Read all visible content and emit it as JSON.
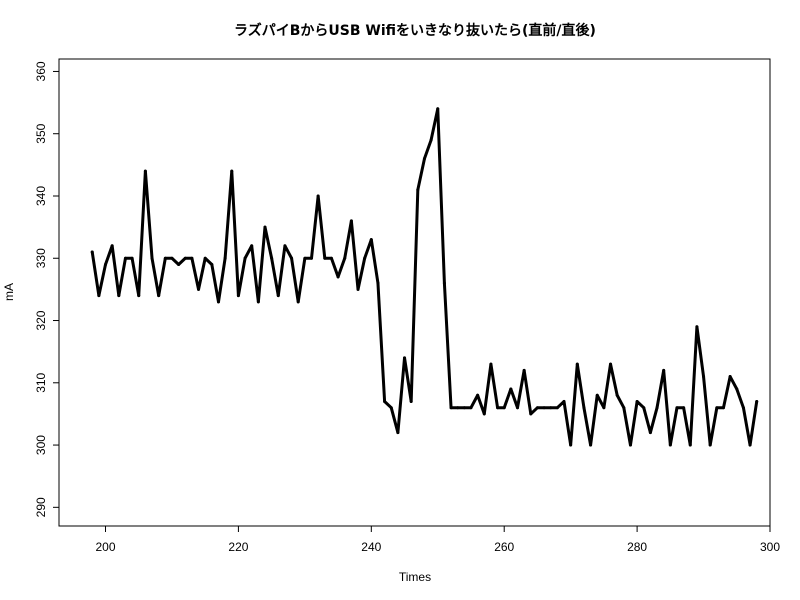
{
  "chart_data": {
    "type": "line",
    "title": "ラズパイBからUSB Wifiをいきなり抜いたら(直前/直後)",
    "xlabel": "Times",
    "ylabel": "mA",
    "xlim": [
      193,
      300
    ],
    "ylim": [
      287,
      362
    ],
    "xticks": [
      200,
      220,
      240,
      260,
      280,
      300
    ],
    "yticks": [
      290,
      300,
      310,
      320,
      330,
      340,
      350,
      360
    ],
    "grid": false,
    "x": [
      198,
      199,
      200,
      201,
      202,
      203,
      204,
      205,
      206,
      207,
      208,
      209,
      210,
      211,
      212,
      213,
      214,
      215,
      216,
      217,
      218,
      219,
      220,
      221,
      222,
      223,
      224,
      225,
      226,
      227,
      228,
      229,
      230,
      231,
      232,
      233,
      234,
      235,
      236,
      237,
      238,
      239,
      240,
      241,
      242,
      243,
      244,
      245,
      246,
      247,
      248,
      249,
      250,
      251,
      252,
      253,
      254,
      255,
      256,
      257,
      258,
      259,
      260,
      261,
      262,
      263,
      264,
      265,
      266,
      267,
      268,
      269,
      270,
      271,
      272,
      273,
      274,
      275,
      276,
      277,
      278,
      279,
      280,
      281,
      282,
      283,
      284,
      285,
      286,
      287,
      288,
      289,
      290,
      291,
      292,
      293,
      294,
      295,
      296,
      297,
      298
    ],
    "values": [
      331,
      324,
      329,
      332,
      324,
      330,
      330,
      324,
      344,
      330,
      324,
      330,
      330,
      329,
      330,
      330,
      325,
      330,
      329,
      323,
      330,
      344,
      324,
      330,
      332,
      323,
      335,
      330,
      324,
      332,
      330,
      323,
      330,
      330,
      340,
      330,
      330,
      327,
      330,
      336,
      325,
      330,
      333,
      326,
      307,
      306,
      302,
      314,
      307,
      341,
      346,
      349,
      354,
      326,
      306,
      306,
      306,
      306,
      308,
      305,
      313,
      306,
      306,
      309,
      306,
      312,
      305,
      306,
      306,
      306,
      306,
      307,
      300,
      313,
      306,
      300,
      308,
      306,
      313,
      308,
      306,
      300,
      307,
      306,
      302,
      306,
      312,
      300,
      306,
      306,
      300,
      319,
      311,
      300,
      306,
      306,
      311,
      309,
      306,
      300,
      307
    ]
  }
}
